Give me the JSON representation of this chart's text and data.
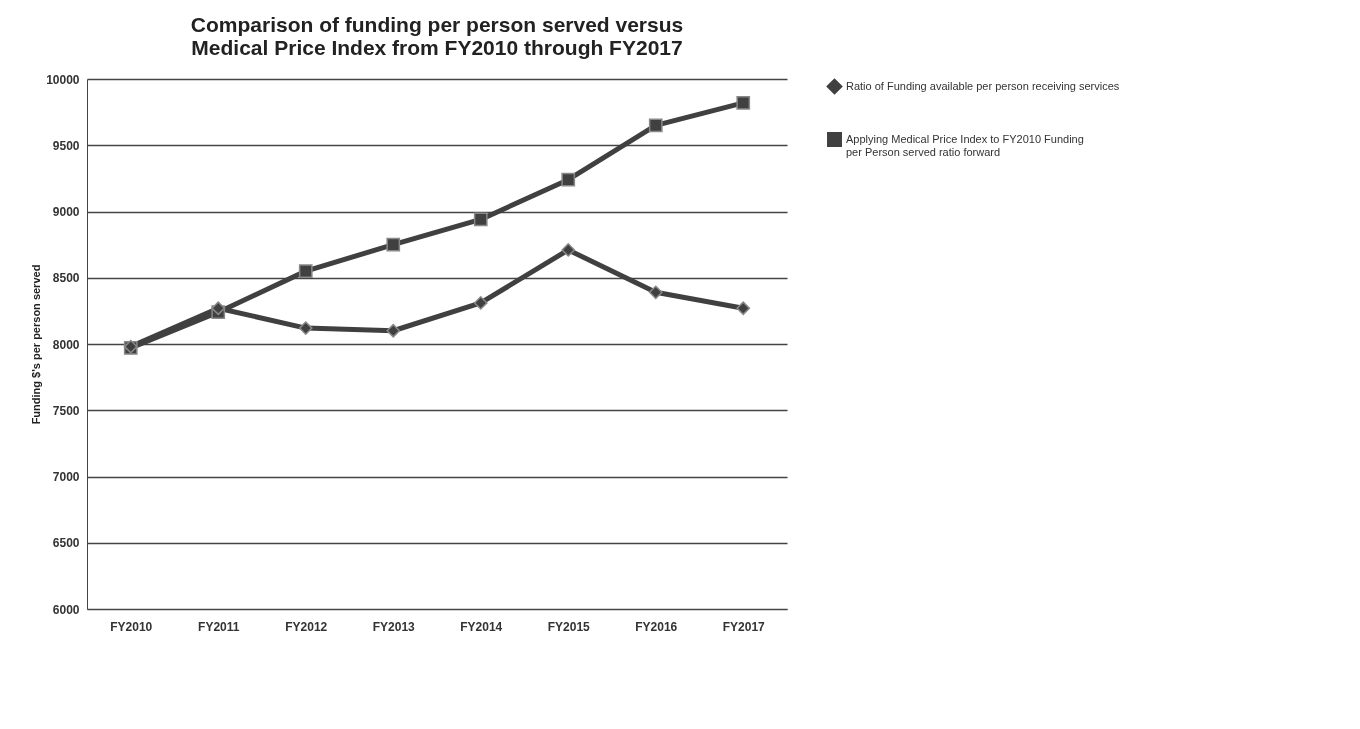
{
  "chart_data": {
    "type": "line",
    "title": "Comparison of funding per person served versus Medical Price Index from FY2010 through FY2017",
    "ylabel": "Funding $'s per person served",
    "categories": [
      "FY2010",
      "FY2011",
      "FY2012",
      "FY2013",
      "FY2014",
      "FY2015",
      "FY2016",
      "FY2017"
    ],
    "series": [
      {
        "name": "Ratio of Funding available per person receiving services",
        "color": "#404040",
        "marker": "diamond",
        "values": [
          7980,
          8270,
          8120,
          8100,
          8310,
          8710,
          8390,
          8270
        ]
      },
      {
        "name": "Applying Medical Price Index to FY2010 Funding per Person served ratio forward",
        "color": "#404040",
        "marker": "square",
        "values": [
          7970,
          8240,
          8550,
          8750,
          8940,
          9240,
          9650,
          9820
        ]
      }
    ],
    "ylim": [
      6000,
      10000
    ],
    "yticks": [
      6000,
      6500,
      7000,
      7500,
      8000,
      8500,
      9000,
      9500,
      10000
    ],
    "grid": "y",
    "legend": "right"
  }
}
